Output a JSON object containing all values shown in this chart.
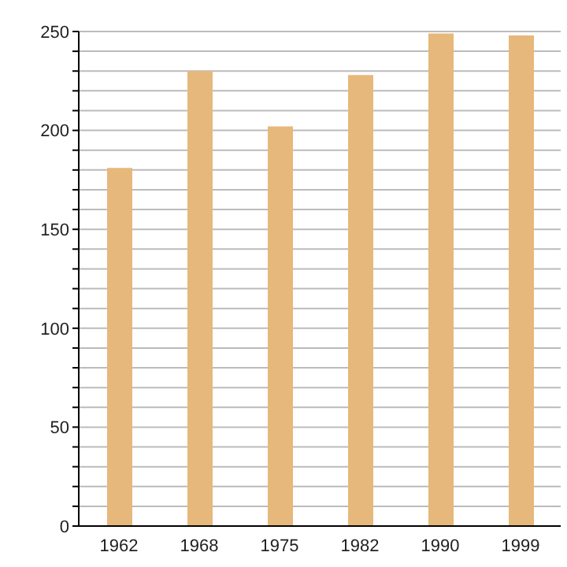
{
  "chart_data": {
    "type": "bar",
    "categories": [
      "1962",
      "1968",
      "1975",
      "1982",
      "1990",
      "1999"
    ],
    "values": [
      181,
      230,
      202,
      228,
      249,
      248
    ],
    "color": "#e6b87c",
    "ylim": [
      0,
      250
    ],
    "yticks": [
      0,
      {
        "value": 10,
        "label": null
      },
      {
        "value": 20,
        "label": null
      },
      {
        "value": 30,
        "label": null
      },
      {
        "value": 40,
        "label": null
      },
      50,
      {
        "value": 60,
        "label": null
      },
      {
        "value": 70,
        "label": null
      },
      {
        "value": 80,
        "label": null
      },
      {
        "value": 90,
        "label": null
      },
      100,
      {
        "value": 110,
        "label": null
      },
      {
        "value": 120,
        "label": null
      },
      {
        "value": 130,
        "label": null
      },
      {
        "value": 140,
        "label": null
      },
      150,
      {
        "value": 160,
        "label": null
      },
      {
        "value": 170,
        "label": null
      },
      {
        "value": 180,
        "label": null
      },
      {
        "value": 190,
        "label": null
      },
      200,
      {
        "value": 210,
        "label": null
      },
      {
        "value": 220,
        "label": null
      },
      {
        "value": 230,
        "label": null
      },
      {
        "value": 240,
        "label": null
      },
      250
    ],
    "grid": "y"
  }
}
